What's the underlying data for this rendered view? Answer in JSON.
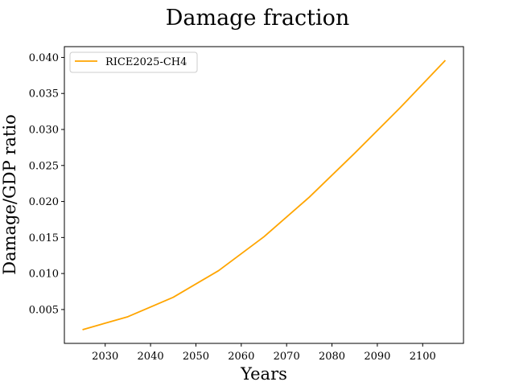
{
  "chart_data": {
    "type": "line",
    "title": "Damage fraction",
    "xlabel": "Years",
    "ylabel": "Damage/GDP ratio",
    "xlim": [
      2021,
      2109
    ],
    "ylim": [
      0.0003,
      0.0415
    ],
    "xticks": [
      2030,
      2040,
      2050,
      2060,
      2070,
      2080,
      2090,
      2100
    ],
    "xtick_labels": [
      "2030",
      "2040",
      "2050",
      "2060",
      "2070",
      "2080",
      "2090",
      "2100"
    ],
    "yticks": [
      0.005,
      0.01,
      0.015,
      0.02,
      0.025,
      0.03,
      0.035,
      0.04
    ],
    "ytick_labels": [
      "0.005",
      "0.010",
      "0.015",
      "0.020",
      "0.025",
      "0.030",
      "0.035",
      "0.040"
    ],
    "grid": false,
    "legend_position": "top-left",
    "series": [
      {
        "name": "RICE2025-CH4",
        "color": "#ffa500",
        "x": [
          2025,
          2035,
          2045,
          2055,
          2065,
          2075,
          2085,
          2095,
          2105
        ],
        "y": [
          0.0022,
          0.004,
          0.0067,
          0.0104,
          0.0151,
          0.0206,
          0.0267,
          0.033,
          0.0396
        ]
      }
    ]
  }
}
